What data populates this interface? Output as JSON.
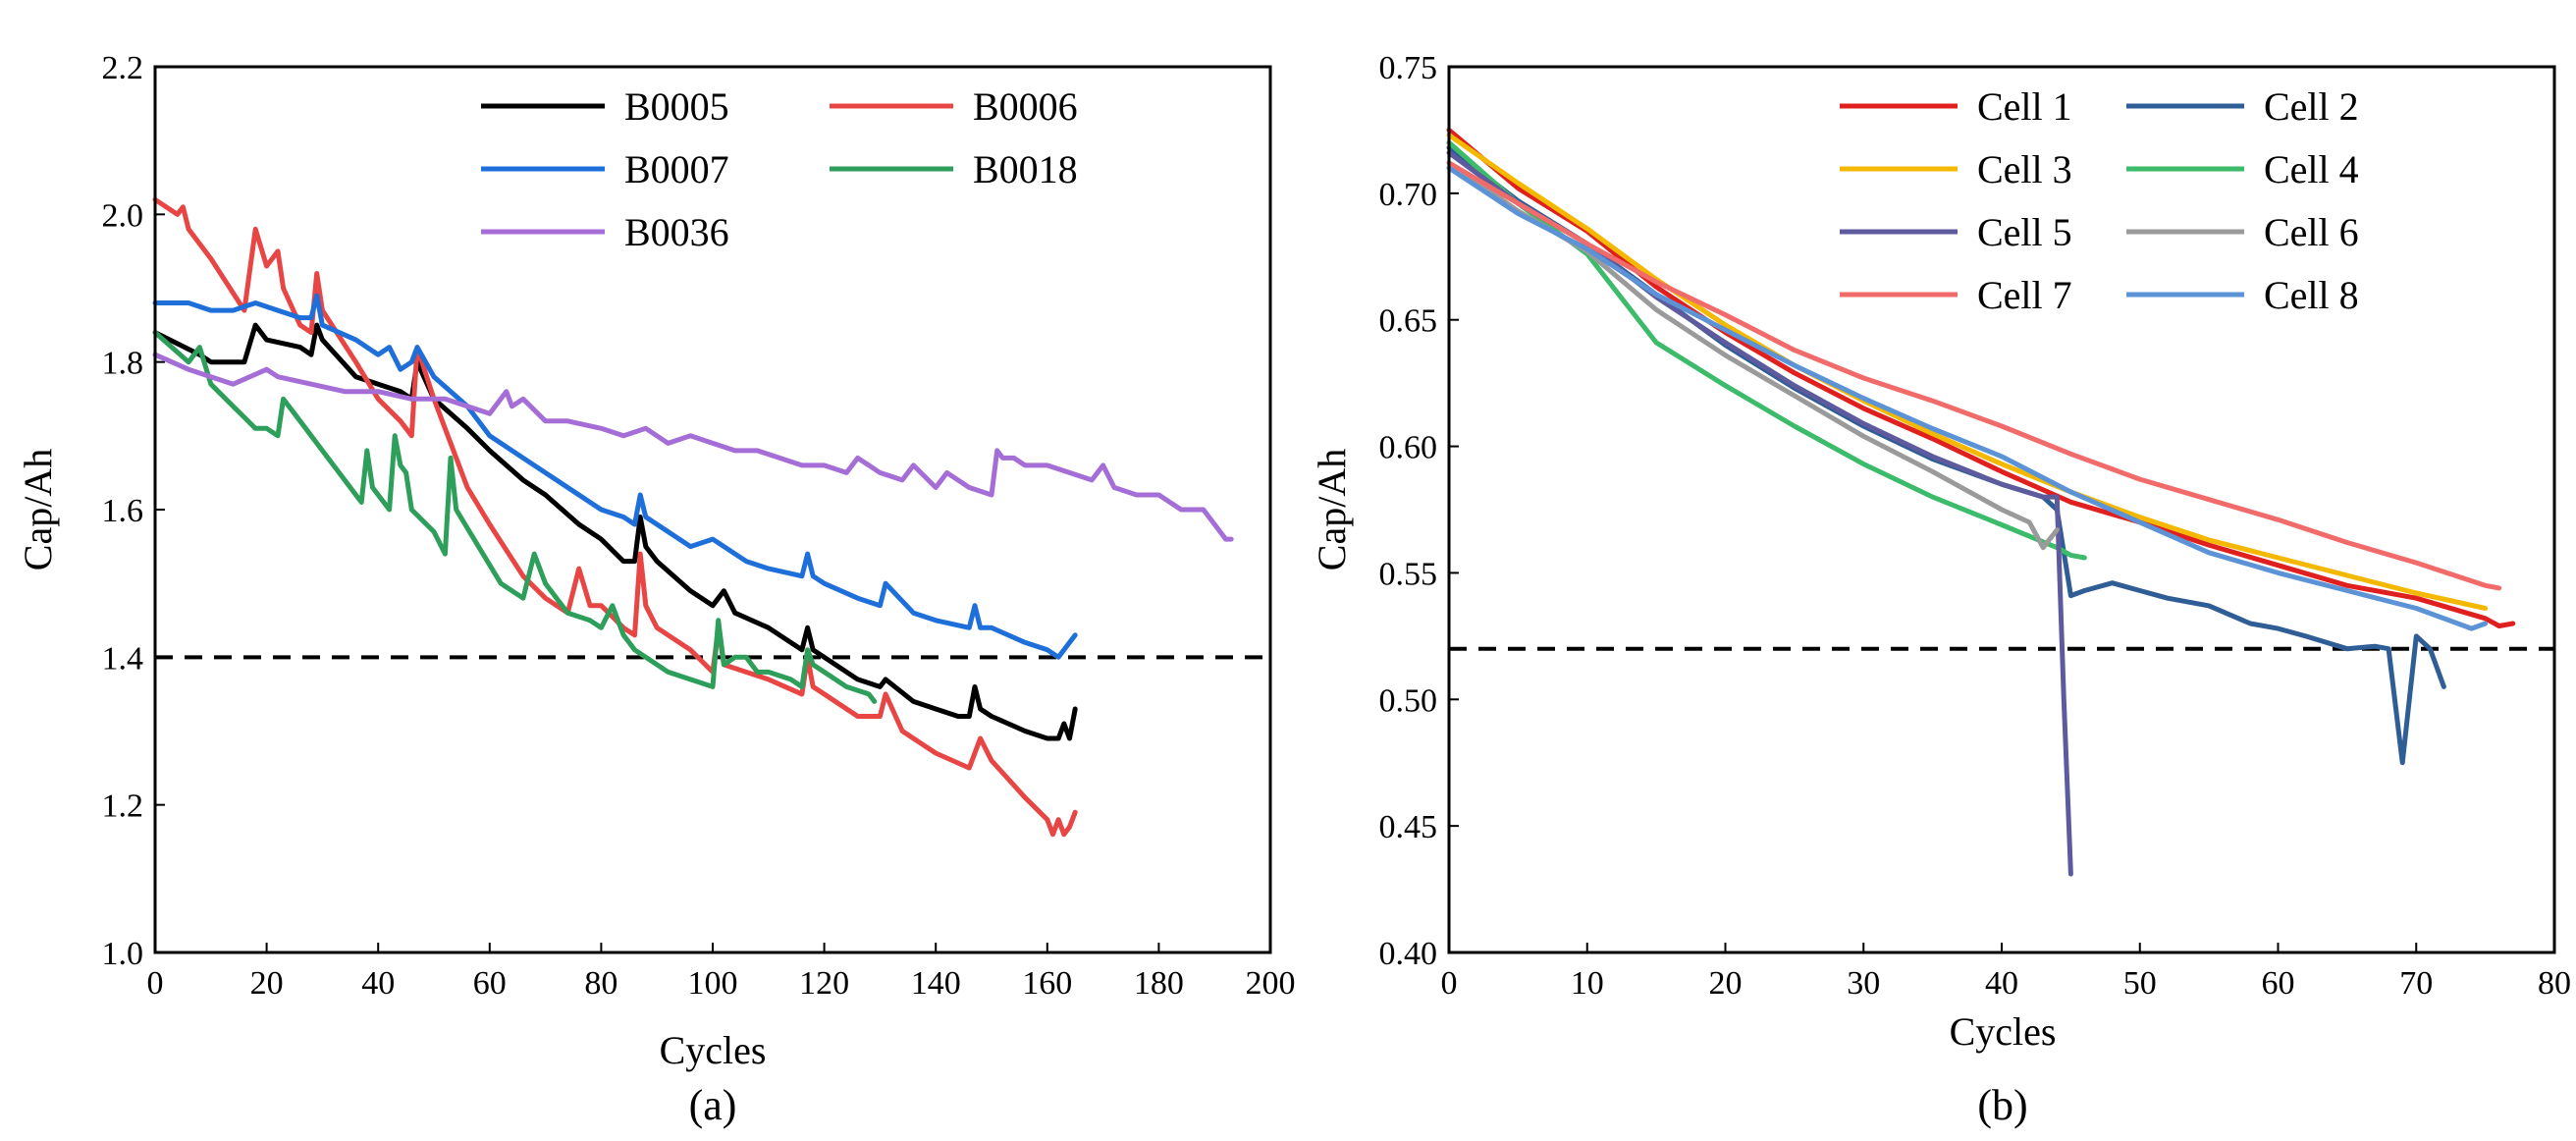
{
  "chart_data": [
    {
      "type": "line",
      "panel_label": "(a)",
      "xlabel": "Cycles",
      "ylabel": "Cap/Ah",
      "xlim": [
        0,
        200
      ],
      "ylim": [
        1.0,
        2.2
      ],
      "xticks": [
        0,
        20,
        40,
        60,
        80,
        100,
        120,
        140,
        160,
        180,
        200
      ],
      "yticks": [
        "1.0",
        "1.2",
        "1.4",
        "1.6",
        "1.8",
        "2.0",
        "2.2"
      ],
      "grid": false,
      "legend_position": "top-right",
      "threshold": {
        "y": 1.4,
        "style": "dashed",
        "color": "#000000"
      },
      "series": [
        {
          "name": "B0005",
          "color": "#000000",
          "x": [
            0,
            8,
            10,
            16,
            18,
            20,
            26,
            28,
            29,
            30,
            36,
            40,
            44,
            46,
            47,
            50,
            56,
            60,
            66,
            70,
            76,
            80,
            84,
            86,
            87,
            88,
            90,
            96,
            100,
            102,
            104,
            110,
            116,
            117,
            118,
            120,
            126,
            130,
            131,
            136,
            140,
            144,
            146,
            147,
            148,
            150,
            156,
            160,
            162,
            163,
            164,
            165
          ],
          "y": [
            1.84,
            1.81,
            1.8,
            1.8,
            1.85,
            1.83,
            1.82,
            1.81,
            1.85,
            1.83,
            1.78,
            1.77,
            1.76,
            1.75,
            1.8,
            1.75,
            1.71,
            1.68,
            1.64,
            1.62,
            1.58,
            1.56,
            1.53,
            1.53,
            1.59,
            1.55,
            1.53,
            1.49,
            1.47,
            1.49,
            1.46,
            1.44,
            1.41,
            1.44,
            1.41,
            1.4,
            1.37,
            1.36,
            1.37,
            1.34,
            1.33,
            1.32,
            1.32,
            1.36,
            1.33,
            1.32,
            1.3,
            1.29,
            1.29,
            1.31,
            1.29,
            1.33
          ]
        },
        {
          "name": "B0006",
          "color": "#E84545",
          "x": [
            0,
            4,
            5,
            6,
            10,
            16,
            18,
            20,
            22,
            23,
            26,
            28,
            29,
            30,
            36,
            40,
            44,
            46,
            47,
            50,
            56,
            60,
            66,
            70,
            74,
            76,
            78,
            80,
            84,
            86,
            87,
            88,
            90,
            96,
            100,
            101,
            102,
            110,
            116,
            117,
            118,
            120,
            126,
            130,
            131,
            134,
            140,
            146,
            148,
            150,
            156,
            160,
            161,
            162,
            163,
            164,
            165
          ],
          "y": [
            2.02,
            2.0,
            2.01,
            1.98,
            1.94,
            1.87,
            1.98,
            1.93,
            1.95,
            1.9,
            1.85,
            1.84,
            1.92,
            1.87,
            1.8,
            1.75,
            1.72,
            1.7,
            1.82,
            1.75,
            1.63,
            1.58,
            1.51,
            1.48,
            1.46,
            1.52,
            1.47,
            1.47,
            1.44,
            1.43,
            1.54,
            1.47,
            1.44,
            1.41,
            1.38,
            1.44,
            1.39,
            1.37,
            1.35,
            1.4,
            1.36,
            1.35,
            1.32,
            1.32,
            1.35,
            1.3,
            1.27,
            1.25,
            1.29,
            1.26,
            1.21,
            1.18,
            1.16,
            1.18,
            1.16,
            1.17,
            1.19
          ]
        },
        {
          "name": "B0007",
          "color": "#1E6FD9",
          "x": [
            0,
            6,
            10,
            14,
            18,
            22,
            26,
            28,
            29,
            30,
            36,
            40,
            42,
            44,
            46,
            47,
            50,
            56,
            60,
            66,
            70,
            76,
            80,
            84,
            86,
            87,
            88,
            90,
            96,
            100,
            106,
            110,
            116,
            117,
            118,
            120,
            126,
            130,
            131,
            136,
            140,
            146,
            147,
            148,
            150,
            156,
            160,
            162,
            164,
            165
          ],
          "y": [
            1.88,
            1.88,
            1.87,
            1.87,
            1.88,
            1.87,
            1.86,
            1.86,
            1.89,
            1.85,
            1.83,
            1.81,
            1.82,
            1.79,
            1.8,
            1.82,
            1.78,
            1.74,
            1.7,
            1.67,
            1.65,
            1.62,
            1.6,
            1.59,
            1.58,
            1.62,
            1.59,
            1.58,
            1.55,
            1.56,
            1.53,
            1.52,
            1.51,
            1.54,
            1.51,
            1.5,
            1.48,
            1.47,
            1.5,
            1.46,
            1.45,
            1.44,
            1.47,
            1.44,
            1.44,
            1.42,
            1.41,
            1.4,
            1.42,
            1.43
          ]
        },
        {
          "name": "B0018",
          "color": "#2E9E5B",
          "x": [
            0,
            6,
            8,
            10,
            14,
            18,
            20,
            22,
            23,
            26,
            30,
            34,
            37,
            38,
            39,
            42,
            43,
            44,
            45,
            46,
            50,
            52,
            53,
            54,
            58,
            62,
            66,
            68,
            70,
            74,
            78,
            80,
            82,
            84,
            86,
            88,
            92,
            96,
            100,
            101,
            102,
            104,
            106,
            108,
            110,
            114,
            116,
            117,
            118,
            120,
            124,
            128,
            129
          ],
          "y": [
            1.84,
            1.8,
            1.82,
            1.77,
            1.74,
            1.71,
            1.71,
            1.7,
            1.75,
            1.72,
            1.68,
            1.64,
            1.61,
            1.68,
            1.63,
            1.6,
            1.7,
            1.66,
            1.65,
            1.6,
            1.57,
            1.54,
            1.67,
            1.6,
            1.55,
            1.5,
            1.48,
            1.54,
            1.5,
            1.46,
            1.45,
            1.44,
            1.47,
            1.43,
            1.41,
            1.4,
            1.38,
            1.37,
            1.36,
            1.45,
            1.39,
            1.4,
            1.4,
            1.38,
            1.38,
            1.37,
            1.36,
            1.41,
            1.39,
            1.38,
            1.36,
            1.35,
            1.34
          ]
        },
        {
          "name": "B0036",
          "color": "#A46ED6",
          "x": [
            0,
            6,
            10,
            14,
            20,
            22,
            28,
            34,
            40,
            46,
            52,
            56,
            60,
            63,
            64,
            66,
            70,
            74,
            80,
            84,
            88,
            92,
            96,
            100,
            104,
            108,
            112,
            116,
            120,
            124,
            126,
            130,
            134,
            136,
            140,
            142,
            146,
            150,
            151,
            152,
            154,
            156,
            160,
            164,
            168,
            170,
            172,
            176,
            180,
            184,
            188,
            189,
            190,
            192,
            193
          ],
          "y": [
            1.81,
            1.79,
            1.78,
            1.77,
            1.79,
            1.78,
            1.77,
            1.76,
            1.76,
            1.75,
            1.75,
            1.74,
            1.73,
            1.76,
            1.74,
            1.75,
            1.72,
            1.72,
            1.71,
            1.7,
            1.71,
            1.69,
            1.7,
            1.69,
            1.68,
            1.68,
            1.67,
            1.66,
            1.66,
            1.65,
            1.67,
            1.65,
            1.64,
            1.66,
            1.63,
            1.65,
            1.63,
            1.62,
            1.68,
            1.67,
            1.67,
            1.66,
            1.66,
            1.65,
            1.64,
            1.66,
            1.63,
            1.62,
            1.62,
            1.6,
            1.6,
            1.59,
            1.58,
            1.56,
            1.56
          ]
        }
      ]
    },
    {
      "type": "line",
      "panel_label": "(b)",
      "xlabel": "Cycles",
      "ylabel": "Cap/Ah",
      "xlim": [
        0,
        80
      ],
      "ylim": [
        0.4,
        0.75
      ],
      "xticks": [
        0,
        10,
        20,
        30,
        40,
        50,
        60,
        70,
        80
      ],
      "yticks": [
        "0.40",
        "0.45",
        "0.50",
        "0.55",
        "0.60",
        "0.65",
        "0.70",
        "0.75"
      ],
      "grid": false,
      "legend_position": "top-right",
      "threshold": {
        "y": 0.52,
        "style": "dashed",
        "color": "#000000"
      },
      "series": [
        {
          "name": "Cell 1",
          "color": "#E0201E",
          "x": [
            0,
            5,
            10,
            15,
            20,
            25,
            30,
            35,
            40,
            45,
            50,
            55,
            60,
            65,
            70,
            75,
            76,
            77
          ],
          "y": [
            0.725,
            0.702,
            0.685,
            0.663,
            0.645,
            0.629,
            0.615,
            0.603,
            0.59,
            0.578,
            0.57,
            0.561,
            0.553,
            0.545,
            0.54,
            0.532,
            0.529,
            0.53
          ]
        },
        {
          "name": "Cell 2",
          "color": "#2F5D95",
          "x": [
            0,
            5,
            10,
            15,
            20,
            25,
            30,
            35,
            40,
            43,
            44,
            45,
            46,
            48,
            50,
            52,
            55,
            58,
            60,
            62,
            65,
            67,
            68,
            69,
            70,
            71,
            72
          ],
          "y": [
            0.718,
            0.697,
            0.68,
            0.66,
            0.64,
            0.623,
            0.608,
            0.595,
            0.585,
            0.58,
            0.575,
            0.541,
            0.543,
            0.546,
            0.543,
            0.54,
            0.537,
            0.53,
            0.528,
            0.525,
            0.52,
            0.521,
            0.52,
            0.475,
            0.525,
            0.52,
            0.505
          ]
        },
        {
          "name": "Cell 3",
          "color": "#F5B800",
          "x": [
            0,
            5,
            10,
            15,
            20,
            25,
            30,
            35,
            40,
            45,
            50,
            55,
            60,
            65,
            70,
            75
          ],
          "y": [
            0.723,
            0.704,
            0.686,
            0.666,
            0.648,
            0.632,
            0.618,
            0.605,
            0.593,
            0.582,
            0.572,
            0.563,
            0.556,
            0.549,
            0.542,
            0.536
          ]
        },
        {
          "name": "Cell 4",
          "color": "#3CBB6A",
          "x": [
            0,
            5,
            10,
            15,
            20,
            25,
            30,
            35,
            40,
            44,
            45,
            46
          ],
          "y": [
            0.72,
            0.696,
            0.676,
            0.641,
            0.624,
            0.608,
            0.593,
            0.58,
            0.569,
            0.56,
            0.557,
            0.556
          ]
        },
        {
          "name": "Cell 5",
          "color": "#5E5A9E",
          "x": [
            0,
            5,
            10,
            15,
            20,
            25,
            30,
            35,
            40,
            43,
            44,
            44.5,
            45
          ],
          "y": [
            0.716,
            0.696,
            0.68,
            0.659,
            0.641,
            0.624,
            0.609,
            0.596,
            0.585,
            0.58,
            0.58,
            0.5,
            0.431
          ]
        },
        {
          "name": "Cell 6",
          "color": "#9A9A9A",
          "x": [
            0,
            5,
            10,
            15,
            20,
            25,
            30,
            35,
            40,
            42,
            43,
            44
          ],
          "y": [
            0.712,
            0.693,
            0.677,
            0.654,
            0.636,
            0.62,
            0.604,
            0.59,
            0.575,
            0.57,
            0.56,
            0.567
          ]
        },
        {
          "name": "Cell 7",
          "color": "#F26B6B",
          "x": [
            0,
            5,
            10,
            15,
            20,
            25,
            30,
            35,
            40,
            45,
            50,
            55,
            60,
            65,
            70,
            75,
            76
          ],
          "y": [
            0.712,
            0.696,
            0.68,
            0.665,
            0.652,
            0.638,
            0.627,
            0.618,
            0.608,
            0.597,
            0.587,
            0.579,
            0.571,
            0.562,
            0.554,
            0.545,
            0.544
          ]
        },
        {
          "name": "Cell 8",
          "color": "#5B93D6",
          "x": [
            0,
            5,
            10,
            15,
            20,
            25,
            30,
            35,
            40,
            45,
            50,
            55,
            60,
            65,
            70,
            74,
            75
          ],
          "y": [
            0.71,
            0.692,
            0.678,
            0.66,
            0.646,
            0.632,
            0.619,
            0.607,
            0.596,
            0.582,
            0.57,
            0.558,
            0.55,
            0.543,
            0.536,
            0.528,
            0.53
          ]
        }
      ]
    }
  ]
}
